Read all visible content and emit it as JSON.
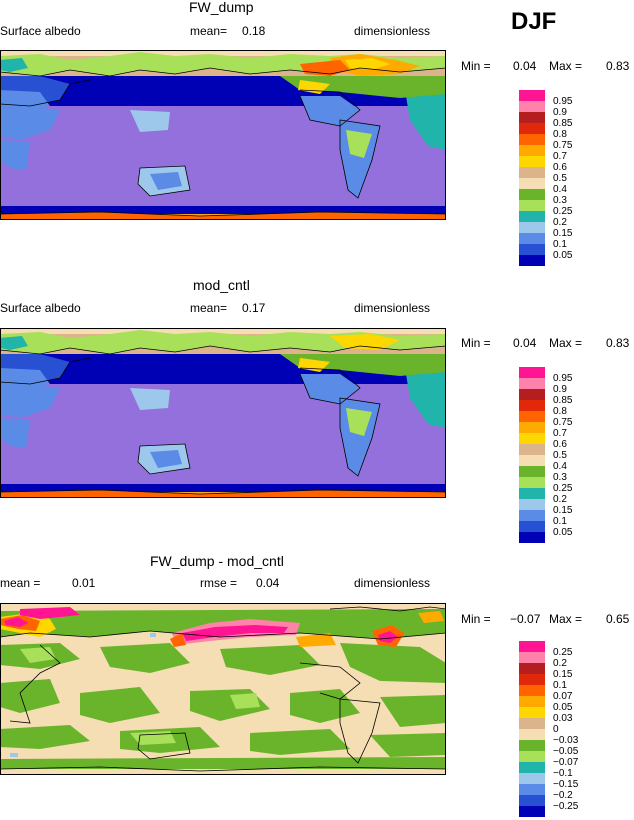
{
  "season": "DJF",
  "colors": {
    "albedo": [
      "#9370db",
      "#0000b4",
      "#2850d2",
      "#5a8be6",
      "#9ec8eb",
      "#20b4aa",
      "#a8e05a",
      "#6ab42c",
      "#f5deb3",
      "#dcb48c",
      "#ffd700",
      "#ffaa00",
      "#ff6400",
      "#e1280a",
      "#b41e1e",
      "#ff82aa",
      "#ff1493"
    ],
    "diff": [
      "#9370db",
      "#0000b4",
      "#2850d2",
      "#5a8be6",
      "#9ec8eb",
      "#20b4aa",
      "#a8e05a",
      "#6ab42c",
      "#f5deb3",
      "#dcb48c",
      "#ffd700",
      "#ffaa00",
      "#ff6400",
      "#e1280a",
      "#b41e1e",
      "#ff82aa",
      "#ff1493"
    ]
  },
  "chart_data": [
    {
      "type": "heatmap",
      "title": "FW_dump",
      "variable": "Surface albedo",
      "mean_label": "mean=",
      "mean": "0.18",
      "units": "dimensionless",
      "min_label": "Min =",
      "min": "0.04",
      "max_label": "Max =",
      "max": "0.83",
      "legend_levels": [
        "0.95",
        "0.9",
        "0.85",
        "0.8",
        "0.75",
        "0.7",
        "0.6",
        "0.5",
        "0.4",
        "0.3",
        "0.25",
        "0.2",
        "0.15",
        "0.1",
        "0.05"
      ]
    },
    {
      "type": "heatmap",
      "title": "mod_cntl",
      "variable": "Surface albedo",
      "mean_label": "mean=",
      "mean": "0.17",
      "units": "dimensionless",
      "min_label": "Min =",
      "min": "0.04",
      "max_label": "Max =",
      "max": "0.83",
      "legend_levels": [
        "0.95",
        "0.9",
        "0.85",
        "0.8",
        "0.75",
        "0.7",
        "0.6",
        "0.5",
        "0.4",
        "0.3",
        "0.25",
        "0.2",
        "0.15",
        "0.1",
        "0.05"
      ]
    },
    {
      "type": "heatmap",
      "title": "FW_dump - mod_cntl",
      "mean_label": "mean =",
      "mean": "0.01",
      "rmse_label": "rmse =",
      "rmse": "0.04",
      "units": "dimensionless",
      "min_label": "Min =",
      "min": "−0.07",
      "max_label": "Max =",
      "max": "0.65",
      "legend_levels": [
        "0.25",
        "0.2",
        "0.15",
        "0.1",
        "0.07",
        "0.05",
        "0.03",
        "0",
        "−0.03",
        "−0.05",
        "−0.07",
        "−0.1",
        "−0.15",
        "−0.2",
        "−0.25"
      ]
    }
  ]
}
